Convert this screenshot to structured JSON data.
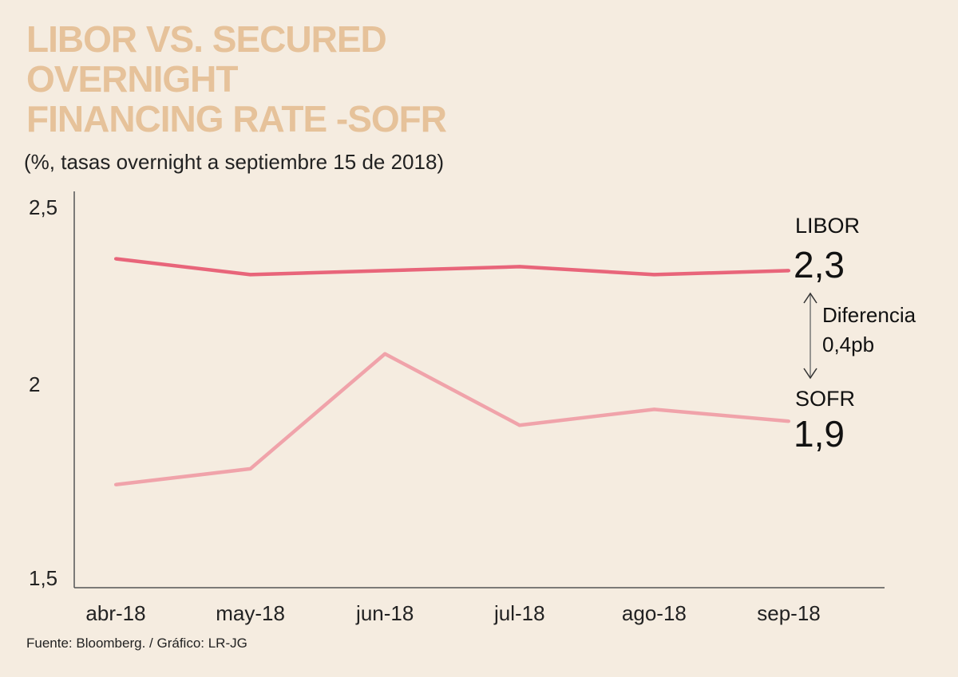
{
  "title_lines": [
    "LIBOR VS. SECURED",
    "OVERNIGHT",
    "FINANCING RATE -SOFR"
  ],
  "subtitle": "(%,  tasas overnight a septiembre 15 de 2018)",
  "source": "Fuente: Bloomberg. / Gráfico: LR-JG",
  "annotation": {
    "line1": "Diferencia",
    "line2": "0,4pb"
  },
  "colors": {
    "background": "#f5ece0",
    "title": "#e6c29a",
    "libor": "#e8657a",
    "sofr": "#f0a3aa"
  },
  "chart_data": {
    "type": "line",
    "categories": [
      "abr-18",
      "may-18",
      "jun-18",
      "jul-18",
      "ago-18",
      "sep-18"
    ],
    "series": [
      {
        "name": "LIBOR",
        "end_label": "2,3",
        "values": [
          2.33,
          2.29,
          2.3,
          2.31,
          2.29,
          2.3
        ]
      },
      {
        "name": "SOFR",
        "end_label": "1,9",
        "values": [
          1.76,
          1.8,
          2.09,
          1.91,
          1.95,
          1.92
        ]
      }
    ],
    "ylim": [
      1.5,
      2.5
    ],
    "yticks": [
      "1,5",
      "2",
      "2,5"
    ],
    "ytick_values": [
      1.5,
      2,
      2.5
    ],
    "grid": false,
    "legend": "right, direct labels"
  }
}
